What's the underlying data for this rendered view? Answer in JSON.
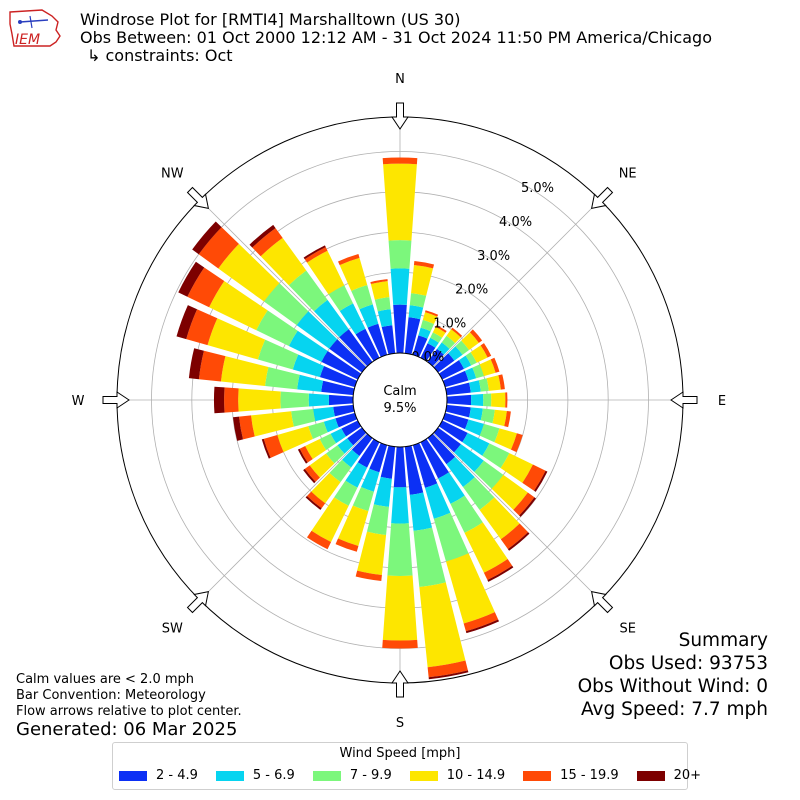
{
  "header": {
    "logo_text": "IEM",
    "title": "Windrose Plot for [RMTI4] Marshalltown (US 30)",
    "subtitle": "Obs Between: 01 Oct 2000 12:12 AM - 31 Oct 2024 11:50 PM America/Chicago",
    "constraints": "↳ constraints: Oct"
  },
  "notes": {
    "calm_note": "Calm values are < 2.0 mph",
    "bar_convention": "Bar Convention: Meteorology",
    "flow_note": "Flow arrows relative to plot center.",
    "generated": "Generated: 06 Mar 2025"
  },
  "summary": {
    "title": "Summary",
    "obs_used": "Obs Used: 93753",
    "obs_without_wind": "Obs Without Wind: 0",
    "avg_speed": "Avg Speed: 7.7 mph"
  },
  "colors": {
    "bins": [
      "#0c30f5",
      "#06d4f0",
      "#7cf77c",
      "#fde600",
      "#ff4a06",
      "#7d0000"
    ],
    "grid": "#b0b0b0"
  },
  "chart_data": {
    "type": "windrose",
    "calm_label": "Calm",
    "calm_percent": "9.5%",
    "radial_ticks": [
      0,
      1,
      2,
      3,
      4,
      5
    ],
    "radial_tick_labels": [
      "0.0%",
      "1.0%",
      "2.0%",
      "3.0%",
      "4.0%",
      "5.0%"
    ],
    "compass_labels": [
      "N",
      "NE",
      "E",
      "SE",
      "S",
      "SW",
      "W",
      "NW"
    ],
    "legend_title": "Wind Speed [mph]",
    "bin_labels": [
      "2 - 4.9",
      "5 - 6.9",
      "7 - 9.9",
      "10 - 14.9",
      "15 - 19.9",
      "20+"
    ],
    "directions_deg": [
      0,
      10,
      20,
      30,
      40,
      50,
      60,
      70,
      80,
      90,
      100,
      110,
      120,
      130,
      140,
      150,
      160,
      170,
      180,
      190,
      200,
      210,
      220,
      230,
      240,
      250,
      260,
      270,
      280,
      290,
      300,
      310,
      320,
      330,
      340,
      350
    ],
    "cumulative_percent": [
      [
        1.2,
        2.1,
        2.8,
        4.7,
        4.85,
        4.85
      ],
      [
        0.9,
        1.2,
        1.5,
        2.2,
        2.3,
        2.3
      ],
      [
        0.5,
        0.7,
        0.9,
        1.1,
        1.15,
        1.15
      ],
      [
        0.4,
        0.55,
        0.7,
        0.85,
        0.9,
        0.9
      ],
      [
        0.4,
        0.6,
        0.8,
        1.0,
        1.05,
        1.05
      ],
      [
        0.5,
        0.75,
        0.95,
        1.25,
        1.35,
        1.35
      ],
      [
        0.6,
        0.8,
        0.95,
        1.25,
        1.35,
        1.35
      ],
      [
        0.6,
        0.8,
        1.0,
        1.3,
        1.4,
        1.4
      ],
      [
        0.6,
        0.85,
        1.05,
        1.35,
        1.45,
        1.45
      ],
      [
        0.6,
        0.9,
        1.1,
        1.45,
        1.5,
        1.5
      ],
      [
        0.6,
        0.9,
        1.2,
        1.5,
        1.6,
        1.6
      ],
      [
        0.6,
        1.0,
        1.4,
        1.85,
        2.0,
        2.0
      ],
      [
        0.7,
        1.3,
        1.85,
        2.5,
        2.85,
        2.9
      ],
      [
        0.7,
        1.4,
        2.0,
        2.75,
        2.95,
        3.0
      ],
      [
        0.8,
        1.5,
        2.2,
        3.1,
        3.4,
        3.45
      ],
      [
        1.0,
        1.7,
        2.5,
        3.6,
        3.8,
        3.85
      ],
      [
        1.1,
        1.9,
        3.0,
        4.6,
        4.8,
        4.85
      ],
      [
        1.2,
        2.1,
        3.5,
        5.5,
        5.75,
        5.8
      ],
      [
        1.0,
        1.9,
        3.2,
        4.8,
        5.0,
        5.0
      ],
      [
        0.8,
        1.5,
        2.2,
        3.2,
        3.35,
        3.35
      ],
      [
        0.7,
        1.2,
        1.7,
        2.6,
        2.75,
        2.75
      ],
      [
        0.7,
        1.25,
        1.75,
        2.75,
        2.95,
        2.95
      ],
      [
        0.55,
        0.9,
        1.35,
        2.0,
        2.15,
        2.2
      ],
      [
        0.45,
        0.75,
        1.1,
        1.6,
        1.75,
        1.8
      ],
      [
        0.45,
        0.75,
        1.05,
        1.45,
        1.6,
        1.65
      ],
      [
        0.5,
        0.8,
        1.2,
        2.0,
        2.35,
        2.4
      ],
      [
        0.5,
        1.0,
        1.55,
        2.55,
        2.85,
        3.0
      ],
      [
        0.6,
        1.1,
        1.8,
        2.85,
        3.2,
        3.45
      ],
      [
        0.8,
        1.4,
        2.2,
        3.3,
        3.85,
        4.1
      ],
      [
        0.9,
        1.6,
        2.5,
        3.8,
        4.35,
        4.6
      ],
      [
        1.0,
        1.9,
        2.8,
        4.1,
        4.7,
        4.95
      ],
      [
        1.0,
        2.0,
        3.0,
        4.4,
        5.0,
        5.2
      ],
      [
        1.0,
        1.9,
        2.8,
        3.8,
        4.1,
        4.2
      ],
      [
        0.8,
        1.5,
        2.0,
        2.95,
        3.05,
        3.1
      ],
      [
        0.8,
        1.3,
        1.8,
        2.5,
        2.6,
        2.6
      ],
      [
        0.7,
        1.1,
        1.4,
        1.8,
        1.85,
        1.85
      ]
    ]
  }
}
